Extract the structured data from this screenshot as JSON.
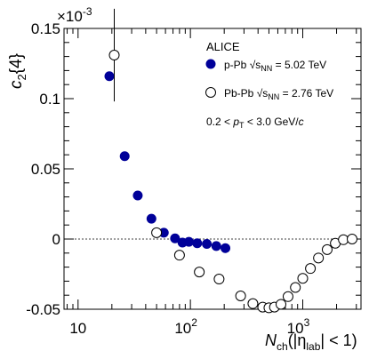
{
  "chart_data": {
    "type": "scatter",
    "experiment": "ALICE",
    "y_axis": {
      "label_main": "c",
      "label_sub": "2",
      "label_braced": "{4}",
      "multiplier": "×10",
      "multiplier_exp": "-3",
      "ylim": [
        -0.05,
        0.15
      ],
      "ticks": [
        {
          "v": 0.15,
          "label": "0.15"
        },
        {
          "v": 0.1,
          "label": "0.1"
        },
        {
          "v": 0.05,
          "label": "0.05"
        },
        {
          "v": 0,
          "label": "0"
        },
        {
          "v": -0.05,
          "label": "-0.05"
        }
      ]
    },
    "x_axis": {
      "scale": "log",
      "xlim": [
        7.5,
        3300
      ],
      "label_main": "N",
      "label_sub": "ch",
      "label_rest_a": "(|η",
      "label_rest_sub": "lab",
      "label_rest_b": "| < 1)",
      "ticks": [
        {
          "v": 10,
          "base": "10",
          "exp": ""
        },
        {
          "v": 100,
          "base": "10",
          "exp": "2"
        },
        {
          "v": 1000,
          "base": "10",
          "exp": "3"
        }
      ]
    },
    "zero_line": 0,
    "kinematic_cut": {
      "pre": "0.2 < ",
      "p": "p",
      "sub": "T",
      "post": " < 3.0 GeV/",
      "c": "c"
    },
    "series": [
      {
        "name": "p-Pb",
        "energy_prefix": "√s",
        "energy_sub": "NN",
        "energy_value": " = 5.02 TeV",
        "marker": "filled-circle",
        "color": "#000099",
        "points": [
          {
            "x": 19,
            "y": 0.116
          },
          {
            "x": 26,
            "y": 0.059
          },
          {
            "x": 34,
            "y": 0.031
          },
          {
            "x": 45,
            "y": 0.0145
          },
          {
            "x": 58,
            "y": 0.0045
          },
          {
            "x": 73,
            "y": 0.0005
          },
          {
            "x": 85,
            "y": -0.0025
          },
          {
            "x": 97,
            "y": -0.002
          },
          {
            "x": 115,
            "y": -0.003
          },
          {
            "x": 140,
            "y": -0.0035
          },
          {
            "x": 170,
            "y": -0.005
          },
          {
            "x": 205,
            "y": -0.0065
          }
        ]
      },
      {
        "name": "Pb-Pb",
        "energy_prefix": "√s",
        "energy_sub": "NN",
        "energy_value": " = 2.76 TeV",
        "marker": "open-circle",
        "color": "#000000",
        "points": [
          {
            "x": 21,
            "y": 0.131,
            "err": 0.033
          },
          {
            "x": 50,
            "y": 0.0045
          },
          {
            "x": 80,
            "y": -0.0115
          },
          {
            "x": 120,
            "y": -0.0235
          },
          {
            "x": 180,
            "y": -0.0285
          },
          {
            "x": 280,
            "y": -0.0405
          },
          {
            "x": 360,
            "y": -0.046
          },
          {
            "x": 440,
            "y": -0.0485
          },
          {
            "x": 500,
            "y": -0.049
          },
          {
            "x": 560,
            "y": -0.0485
          },
          {
            "x": 640,
            "y": -0.0465
          },
          {
            "x": 740,
            "y": -0.041
          },
          {
            "x": 860,
            "y": -0.0345
          },
          {
            "x": 1000,
            "y": -0.028
          },
          {
            "x": 1170,
            "y": -0.021
          },
          {
            "x": 1380,
            "y": -0.0135
          },
          {
            "x": 1650,
            "y": -0.0075
          },
          {
            "x": 1950,
            "y": -0.003
          },
          {
            "x": 2300,
            "y": -0.0005
          },
          {
            "x": 2750,
            "y": 0
          }
        ]
      }
    ]
  }
}
